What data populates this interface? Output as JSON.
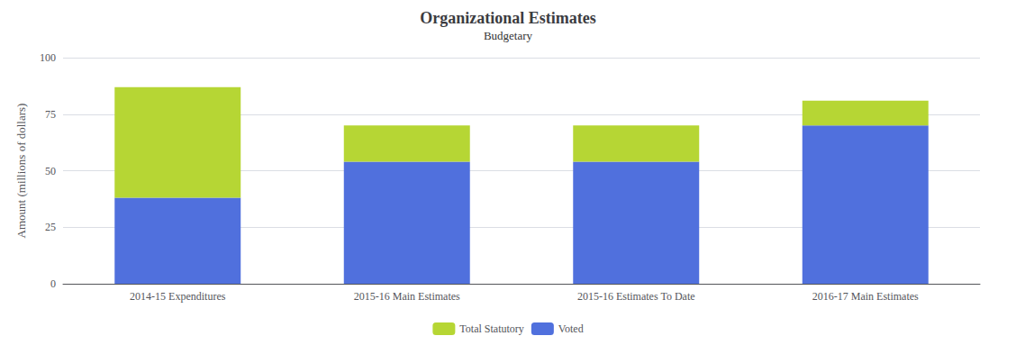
{
  "chart_data": {
    "type": "bar",
    "stacked": true,
    "title": "Organizational Estimates",
    "subtitle": "Budgetary",
    "ylabel": "Amount (millions of dollars)",
    "categories": [
      "2014-15 Expenditures",
      "2015-16 Main Estimates",
      "2015-16 Estimates To Date",
      "2016-17 Main Estimates"
    ],
    "series": [
      {
        "name": "Voted",
        "values": [
          38.0,
          54.0,
          54.0,
          70.0
        ]
      },
      {
        "name": "Total Statutory",
        "values": [
          49.0,
          16.0,
          16.0,
          11.0
        ]
      }
    ],
    "ylim": [
      0,
      100
    ],
    "yticks": [
      0,
      25,
      50,
      75,
      100
    ],
    "grid": true,
    "legend": "bottom"
  }
}
